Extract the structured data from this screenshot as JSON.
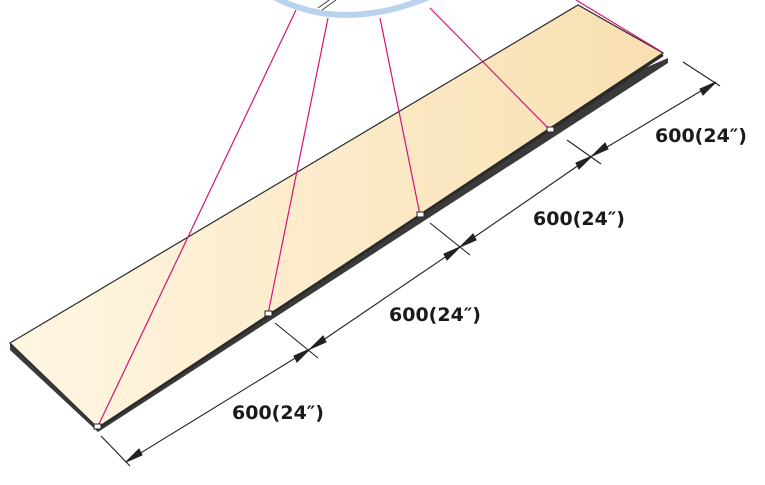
{
  "diagram": {
    "dimension_labels": [
      "600(24″)",
      "600(24″)",
      "600(24″)",
      "600(24″)"
    ],
    "colors": {
      "board_light": "#fff6e2",
      "board_dark": "#f8dfb0",
      "board_edge": "#2a2a2a",
      "guide_lines": "#d4147a",
      "magnifier_ring": "#b9d3ee",
      "dimension_lines": "#222222"
    }
  }
}
